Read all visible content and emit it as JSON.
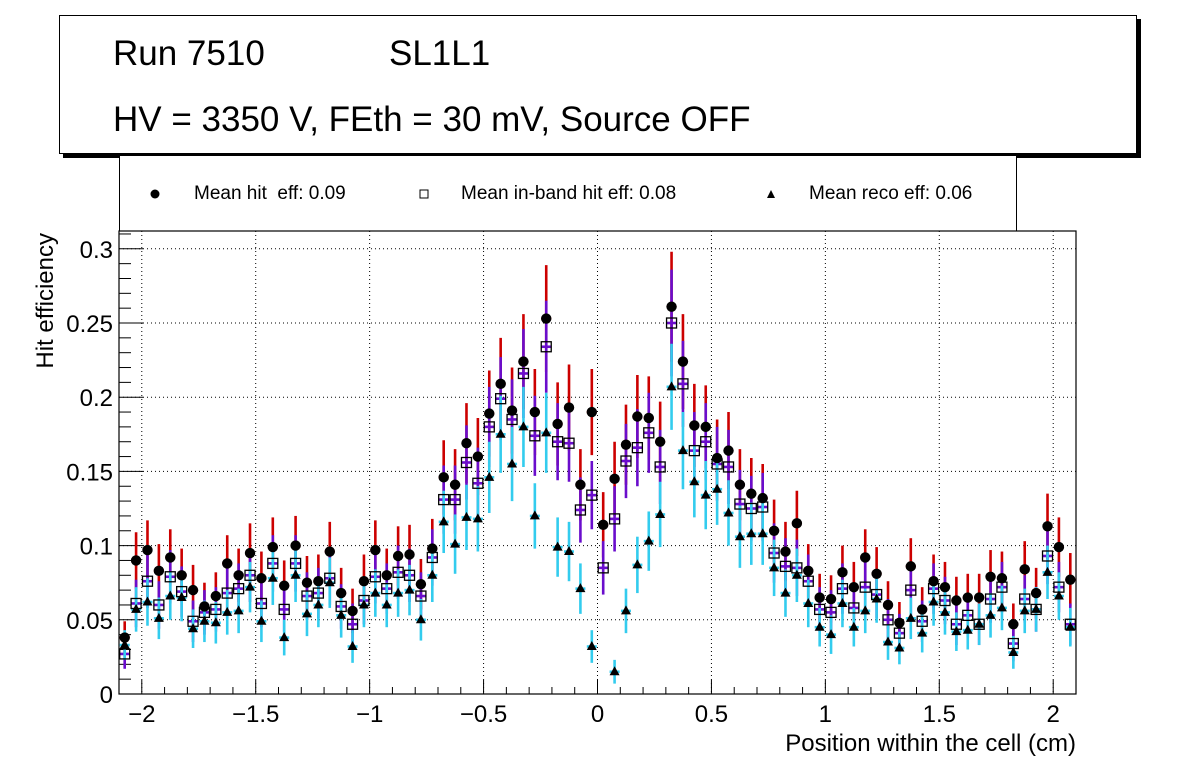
{
  "title_box": {
    "run_label": "Run 7510",
    "layer_label": "SL1L1",
    "conditions_label": "HV = 3350 V, FEth = 30 mV, Source OFF"
  },
  "legend": {
    "placement": "top",
    "entries": [
      {
        "label": "Mean hit  eff: 0.09",
        "marker": "filled-circle"
      },
      {
        "label": "Mean in-band hit eff: 0.08",
        "marker": "open-square"
      },
      {
        "label": "Mean reco eff: 0.06",
        "marker": "filled-triangle"
      }
    ]
  },
  "chart_data": {
    "type": "scatter",
    "title": "",
    "xlabel": "Position within the cell (cm)",
    "ylabel": "Hit efficiency",
    "xlim": [
      -2.1,
      2.1
    ],
    "ylim": [
      0,
      0.312
    ],
    "grid": true,
    "x_ticks": [
      -2,
      -1.5,
      -1,
      -0.5,
      0,
      0.5,
      1,
      1.5,
      2
    ],
    "x_tick_labels": [
      "−2",
      "−1.5",
      "−1",
      "−0.5",
      "0",
      "0.5",
      "1",
      "1.5",
      "2"
    ],
    "y_ticks": [
      0,
      0.05,
      0.1,
      0.15,
      0.2,
      0.25,
      0.3
    ],
    "y_tick_labels": [
      "0",
      "0.05",
      "0.1",
      "0.15",
      "0.2",
      "0.25",
      "0.3"
    ],
    "x": [
      -2.075,
      -2.025,
      -1.975,
      -1.925,
      -1.875,
      -1.825,
      -1.775,
      -1.725,
      -1.675,
      -1.625,
      -1.575,
      -1.525,
      -1.475,
      -1.425,
      -1.375,
      -1.325,
      -1.275,
      -1.225,
      -1.175,
      -1.125,
      -1.075,
      -1.025,
      -0.975,
      -0.925,
      -0.875,
      -0.825,
      -0.775,
      -0.725,
      -0.675,
      -0.625,
      -0.575,
      -0.525,
      -0.475,
      -0.425,
      -0.375,
      -0.325,
      -0.275,
      -0.225,
      -0.175,
      -0.125,
      -0.075,
      -0.025,
      0.025,
      0.075,
      0.125,
      0.175,
      0.225,
      0.275,
      0.325,
      0.375,
      0.425,
      0.475,
      0.525,
      0.575,
      0.625,
      0.675,
      0.725,
      0.775,
      0.825,
      0.875,
      0.925,
      0.975,
      1.025,
      1.075,
      1.125,
      1.175,
      1.225,
      1.275,
      1.325,
      1.375,
      1.425,
      1.475,
      1.525,
      1.575,
      1.625,
      1.675,
      1.725,
      1.775,
      1.825,
      1.875,
      1.925,
      1.975,
      2.025,
      2.075
    ],
    "series": [
      {
        "name": "Mean hit  eff: 0.09",
        "marker": "filled-circle",
        "marker_color": "#000000",
        "error_color": "#cc0000",
        "values": [
          0.038,
          0.09,
          0.097,
          0.083,
          0.092,
          0.08,
          0.07,
          0.059,
          0.066,
          0.088,
          0.08,
          0.095,
          0.078,
          0.099,
          0.073,
          0.1,
          0.075,
          0.076,
          0.096,
          0.068,
          0.056,
          0.076,
          0.097,
          0.08,
          0.093,
          0.094,
          0.074,
          0.098,
          0.146,
          0.141,
          0.169,
          0.16,
          0.189,
          0.209,
          0.191,
          0.224,
          0.19,
          0.253,
          0.182,
          0.193,
          0.141,
          0.19,
          0.114,
          0.145,
          0.168,
          0.187,
          0.186,
          0.17,
          0.261,
          0.224,
          0.181,
          0.18,
          0.159,
          0.164,
          0.141,
          0.135,
          0.132,
          0.11,
          0.096,
          0.115,
          0.083,
          0.065,
          0.064,
          0.082,
          0.072,
          0.092,
          0.081,
          0.06,
          0.048,
          0.086,
          0.057,
          0.076,
          0.072,
          0.063,
          0.065,
          0.065,
          0.079,
          0.078,
          0.047,
          0.084,
          0.068,
          0.113,
          0.099,
          0.077
        ],
        "errors": [
          0.011,
          0.019,
          0.02,
          0.018,
          0.019,
          0.018,
          0.017,
          0.016,
          0.016,
          0.019,
          0.018,
          0.02,
          0.018,
          0.02,
          0.017,
          0.02,
          0.018,
          0.018,
          0.02,
          0.017,
          0.015,
          0.018,
          0.02,
          0.018,
          0.02,
          0.02,
          0.017,
          0.02,
          0.025,
          0.024,
          0.027,
          0.026,
          0.029,
          0.031,
          0.029,
          0.032,
          0.029,
          0.036,
          0.028,
          0.029,
          0.024,
          0.029,
          0.022,
          0.025,
          0.027,
          0.028,
          0.028,
          0.027,
          0.037,
          0.032,
          0.028,
          0.028,
          0.026,
          0.026,
          0.024,
          0.024,
          0.023,
          0.021,
          0.02,
          0.022,
          0.018,
          0.016,
          0.016,
          0.018,
          0.017,
          0.019,
          0.018,
          0.016,
          0.014,
          0.019,
          0.015,
          0.018,
          0.017,
          0.016,
          0.016,
          0.016,
          0.018,
          0.018,
          0.014,
          0.019,
          0.017,
          0.022,
          0.02,
          0.018
        ]
      },
      {
        "name": "Mean in-band hit eff: 0.08",
        "marker": "open-square",
        "marker_color": "#000000",
        "error_color": "#6a0dcc",
        "values": [
          0.027,
          0.061,
          0.076,
          0.06,
          0.079,
          0.069,
          0.049,
          0.055,
          0.057,
          0.068,
          0.071,
          0.08,
          0.061,
          0.088,
          0.057,
          0.088,
          0.066,
          0.068,
          0.078,
          0.059,
          0.047,
          0.063,
          0.079,
          0.071,
          0.082,
          0.08,
          0.066,
          0.092,
          0.131,
          0.131,
          0.156,
          0.142,
          0.18,
          0.199,
          0.185,
          0.216,
          0.174,
          0.234,
          0.17,
          0.169,
          0.124,
          0.134,
          0.085,
          0.118,
          0.157,
          0.166,
          0.176,
          0.153,
          0.25,
          0.209,
          0.164,
          0.17,
          0.155,
          0.153,
          0.128,
          0.125,
          0.126,
          0.095,
          0.086,
          0.085,
          0.076,
          0.057,
          0.055,
          0.071,
          0.058,
          0.072,
          0.067,
          0.05,
          0.041,
          0.07,
          0.049,
          0.071,
          0.063,
          0.047,
          0.053,
          0.047,
          0.064,
          0.072,
          0.034,
          0.064,
          0.057,
          0.093,
          0.072,
          0.047
        ],
        "errors": [
          0.01,
          0.016,
          0.018,
          0.016,
          0.018,
          0.017,
          0.014,
          0.015,
          0.015,
          0.017,
          0.017,
          0.018,
          0.016,
          0.019,
          0.015,
          0.019,
          0.016,
          0.017,
          0.018,
          0.015,
          0.014,
          0.016,
          0.018,
          0.017,
          0.018,
          0.018,
          0.016,
          0.019,
          0.023,
          0.023,
          0.025,
          0.024,
          0.027,
          0.028,
          0.027,
          0.03,
          0.027,
          0.031,
          0.026,
          0.026,
          0.022,
          0.023,
          0.018,
          0.022,
          0.025,
          0.026,
          0.027,
          0.025,
          0.036,
          0.029,
          0.026,
          0.026,
          0.025,
          0.025,
          0.023,
          0.022,
          0.023,
          0.02,
          0.019,
          0.019,
          0.018,
          0.015,
          0.015,
          0.017,
          0.015,
          0.017,
          0.016,
          0.014,
          0.013,
          0.017,
          0.014,
          0.017,
          0.016,
          0.014,
          0.015,
          0.014,
          0.016,
          0.017,
          0.012,
          0.016,
          0.015,
          0.019,
          0.017,
          0.014
        ]
      },
      {
        "name": "Mean reco eff: 0.06",
        "marker": "filled-triangle",
        "marker_color": "#000000",
        "error_color": "#33ccee",
        "values": [
          0.033,
          0.057,
          0.062,
          0.051,
          0.066,
          0.065,
          0.044,
          0.049,
          0.048,
          0.055,
          0.056,
          0.072,
          0.049,
          0.078,
          0.038,
          0.08,
          0.054,
          0.06,
          0.075,
          0.053,
          0.032,
          0.06,
          0.068,
          0.06,
          0.068,
          0.07,
          0.05,
          0.08,
          0.116,
          0.101,
          0.119,
          0.118,
          0.146,
          0.175,
          0.155,
          0.18,
          0.12,
          0.176,
          0.099,
          0.096,
          0.071,
          0.032,
          null,
          0.015,
          0.056,
          0.087,
          0.103,
          0.121,
          0.207,
          0.164,
          0.143,
          0.134,
          0.138,
          0.122,
          0.106,
          0.108,
          0.108,
          0.085,
          0.068,
          0.08,
          0.061,
          0.045,
          0.04,
          0.061,
          0.045,
          0.056,
          0.064,
          0.035,
          0.031,
          0.051,
          0.041,
          0.062,
          0.055,
          0.042,
          0.043,
          0.047,
          0.053,
          0.058,
          0.028,
          0.056,
          0.057,
          0.082,
          0.066,
          0.045
        ],
        "errors": [
          0.01,
          0.015,
          0.016,
          0.014,
          0.016,
          0.016,
          0.013,
          0.014,
          0.014,
          0.015,
          0.015,
          0.017,
          0.014,
          0.018,
          0.012,
          0.018,
          0.015,
          0.015,
          0.017,
          0.015,
          0.011,
          0.015,
          0.016,
          0.015,
          0.016,
          0.017,
          0.014,
          0.018,
          0.021,
          0.02,
          0.022,
          0.022,
          0.024,
          0.026,
          0.025,
          0.027,
          0.022,
          0.027,
          0.02,
          0.02,
          0.017,
          0.011,
          null,
          0.008,
          0.015,
          0.019,
          0.02,
          0.022,
          0.029,
          0.026,
          0.024,
          0.023,
          0.024,
          0.022,
          0.021,
          0.021,
          0.021,
          0.019,
          0.016,
          0.018,
          0.016,
          0.013,
          0.013,
          0.016,
          0.013,
          0.015,
          0.016,
          0.012,
          0.011,
          0.014,
          0.013,
          0.016,
          0.015,
          0.013,
          0.013,
          0.014,
          0.015,
          0.015,
          0.011,
          0.015,
          0.015,
          0.018,
          0.016,
          0.013
        ]
      }
    ]
  }
}
